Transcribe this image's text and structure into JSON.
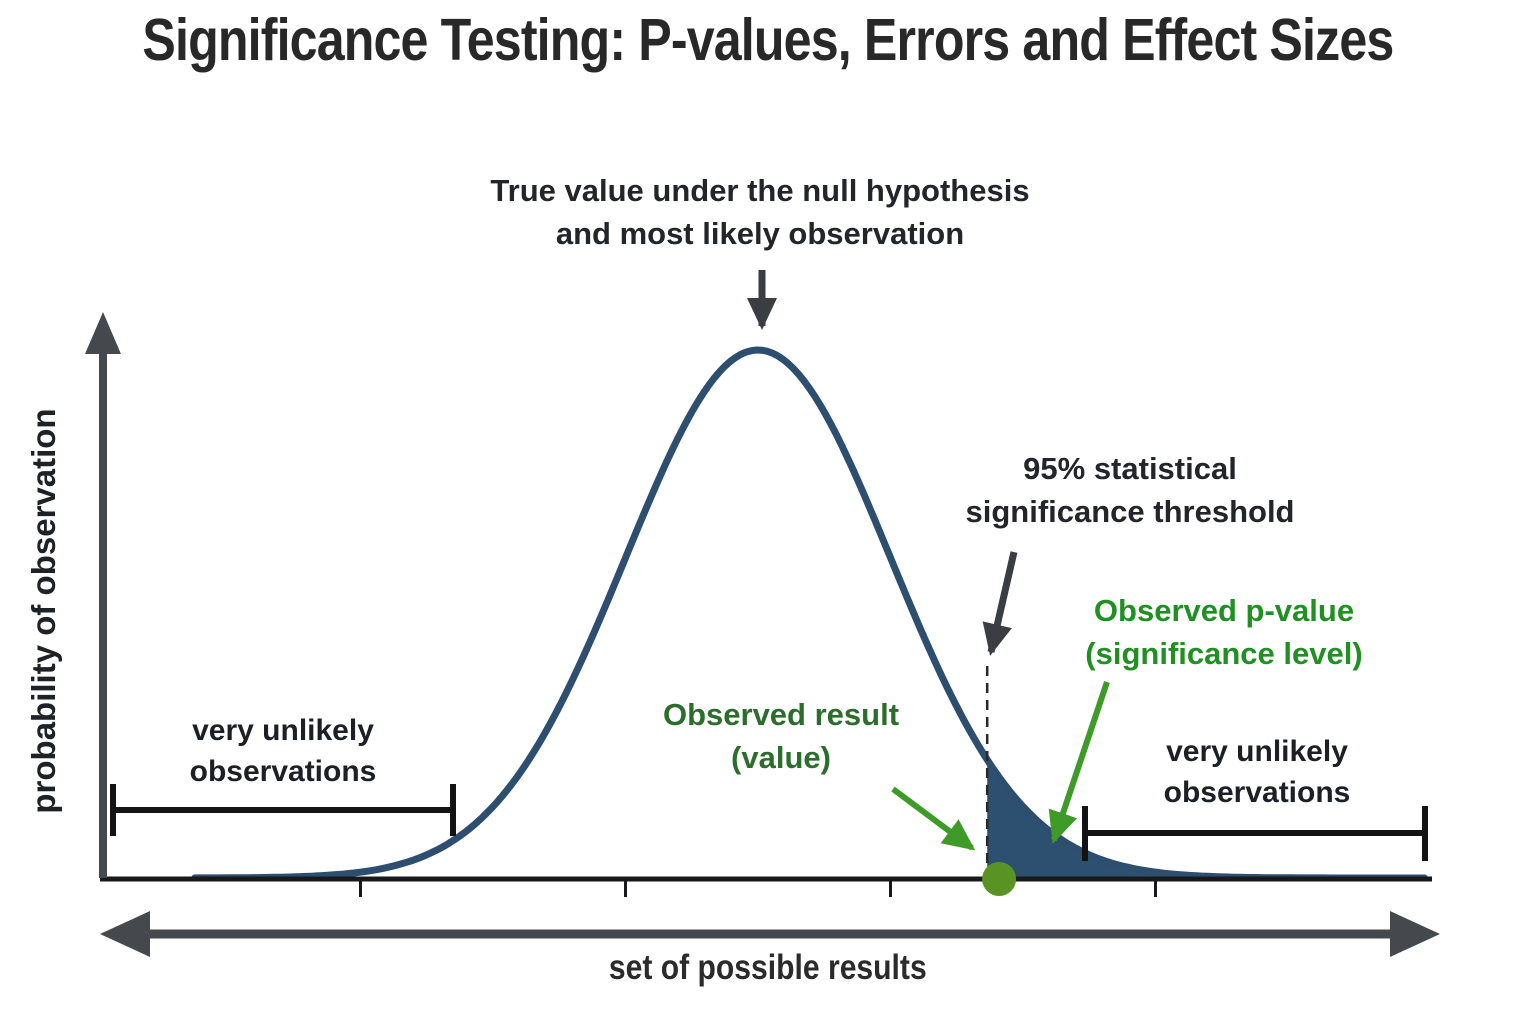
{
  "title": "Significance Testing: P-values, Errors and Effect Sizes",
  "axes": {
    "x_label": "set of possible results",
    "y_label": "probability of observation"
  },
  "annotations": {
    "null_hypothesis": {
      "line1": "True value under the null hypothesis",
      "line2": "and most likely observation"
    },
    "threshold": {
      "line1": "95% statistical",
      "line2": "significance threshold"
    },
    "p_value": {
      "line1": "Observed p-value",
      "line2": "(significance level)"
    },
    "observed_result": {
      "line1": "Observed result",
      "line2": "(value)"
    },
    "left_unlikely": {
      "line1": "very unlikely",
      "line2": "observations"
    },
    "right_unlikely": {
      "line1": "very unlikely",
      "line2": "observations"
    }
  },
  "colors": {
    "curve_navy": "#2d4e6e",
    "tail_fill_navy": "#2e5070",
    "axis_black": "#17191c",
    "arrow_dark_gray": "#45484d",
    "annotation_dark": "#22252a",
    "green_bright_text": "#1f9021",
    "green_dark_text": "#2b6d2b",
    "green_arrow": "#3f9b28",
    "green_dot": "#599324"
  },
  "chart_data": {
    "type": "area",
    "title": "Significance Testing: P-values, Errors and Effect Sizes",
    "xlabel": "set of possible results",
    "ylabel": "probability of observation",
    "description": "Standard normal probability density curve (null-hypothesis sampling distribution). No numeric axis labels; x measured in standard deviations from the mean.",
    "curve": {
      "shape": "normal",
      "mean_sigma": 0,
      "plot_range_sigma": [
        -4.25,
        5.05
      ]
    },
    "x_ticks_sigma": [
      -3,
      -1,
      1,
      3
    ],
    "threshold_sigma": 1.73,
    "observed_result_sigma": 1.82,
    "shaded_region": "right tail of the curve beyond the 95% significance threshold (observed p-value area)",
    "left_unlikely_range_sigma": [
      -4.87,
      -2.3
    ],
    "right_unlikely_range_sigma": [
      2.47,
      5.03
    ],
    "grid": false,
    "legend": false
  }
}
